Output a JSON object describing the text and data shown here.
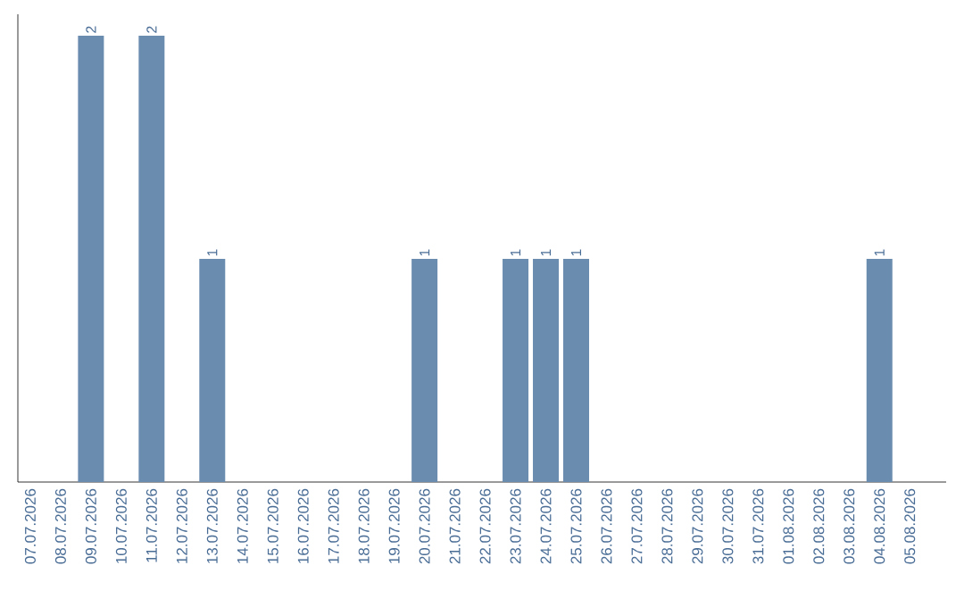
{
  "chart_data": {
    "type": "bar",
    "color": "#6a8caf",
    "categories": [
      "07.07.2026",
      "08.07.2026",
      "09.07.2026",
      "10.07.2026",
      "11.07.2026",
      "12.07.2026",
      "13.07.2026",
      "14.07.2026",
      "15.07.2026",
      "16.07.2026",
      "17.07.2026",
      "18.07.2026",
      "19.07.2026",
      "20.07.2026",
      "21.07.2026",
      "22.07.2026",
      "23.07.2026",
      "24.07.2026",
      "25.07.2026",
      "26.07.2026",
      "27.07.2026",
      "28.07.2026",
      "29.07.2026",
      "30.07.2026",
      "31.07.2026",
      "01.08.2026",
      "02.08.2026",
      "03.08.2026",
      "04.08.2026",
      "05.08.2026"
    ],
    "values": [
      0,
      0,
      2,
      0,
      2,
      0,
      1,
      0,
      0,
      0,
      0,
      0,
      0,
      1,
      0,
      0,
      1,
      1,
      1,
      0,
      0,
      0,
      0,
      0,
      0,
      0,
      0,
      0,
      1,
      0
    ],
    "value_labels": [
      null,
      null,
      "2",
      null,
      "2",
      null,
      "1",
      null,
      null,
      null,
      null,
      null,
      null,
      "1",
      null,
      null,
      "1",
      "1",
      "1",
      null,
      null,
      null,
      null,
      null,
      null,
      null,
      null,
      null,
      "1",
      null
    ],
    "data_labels": false
  }
}
